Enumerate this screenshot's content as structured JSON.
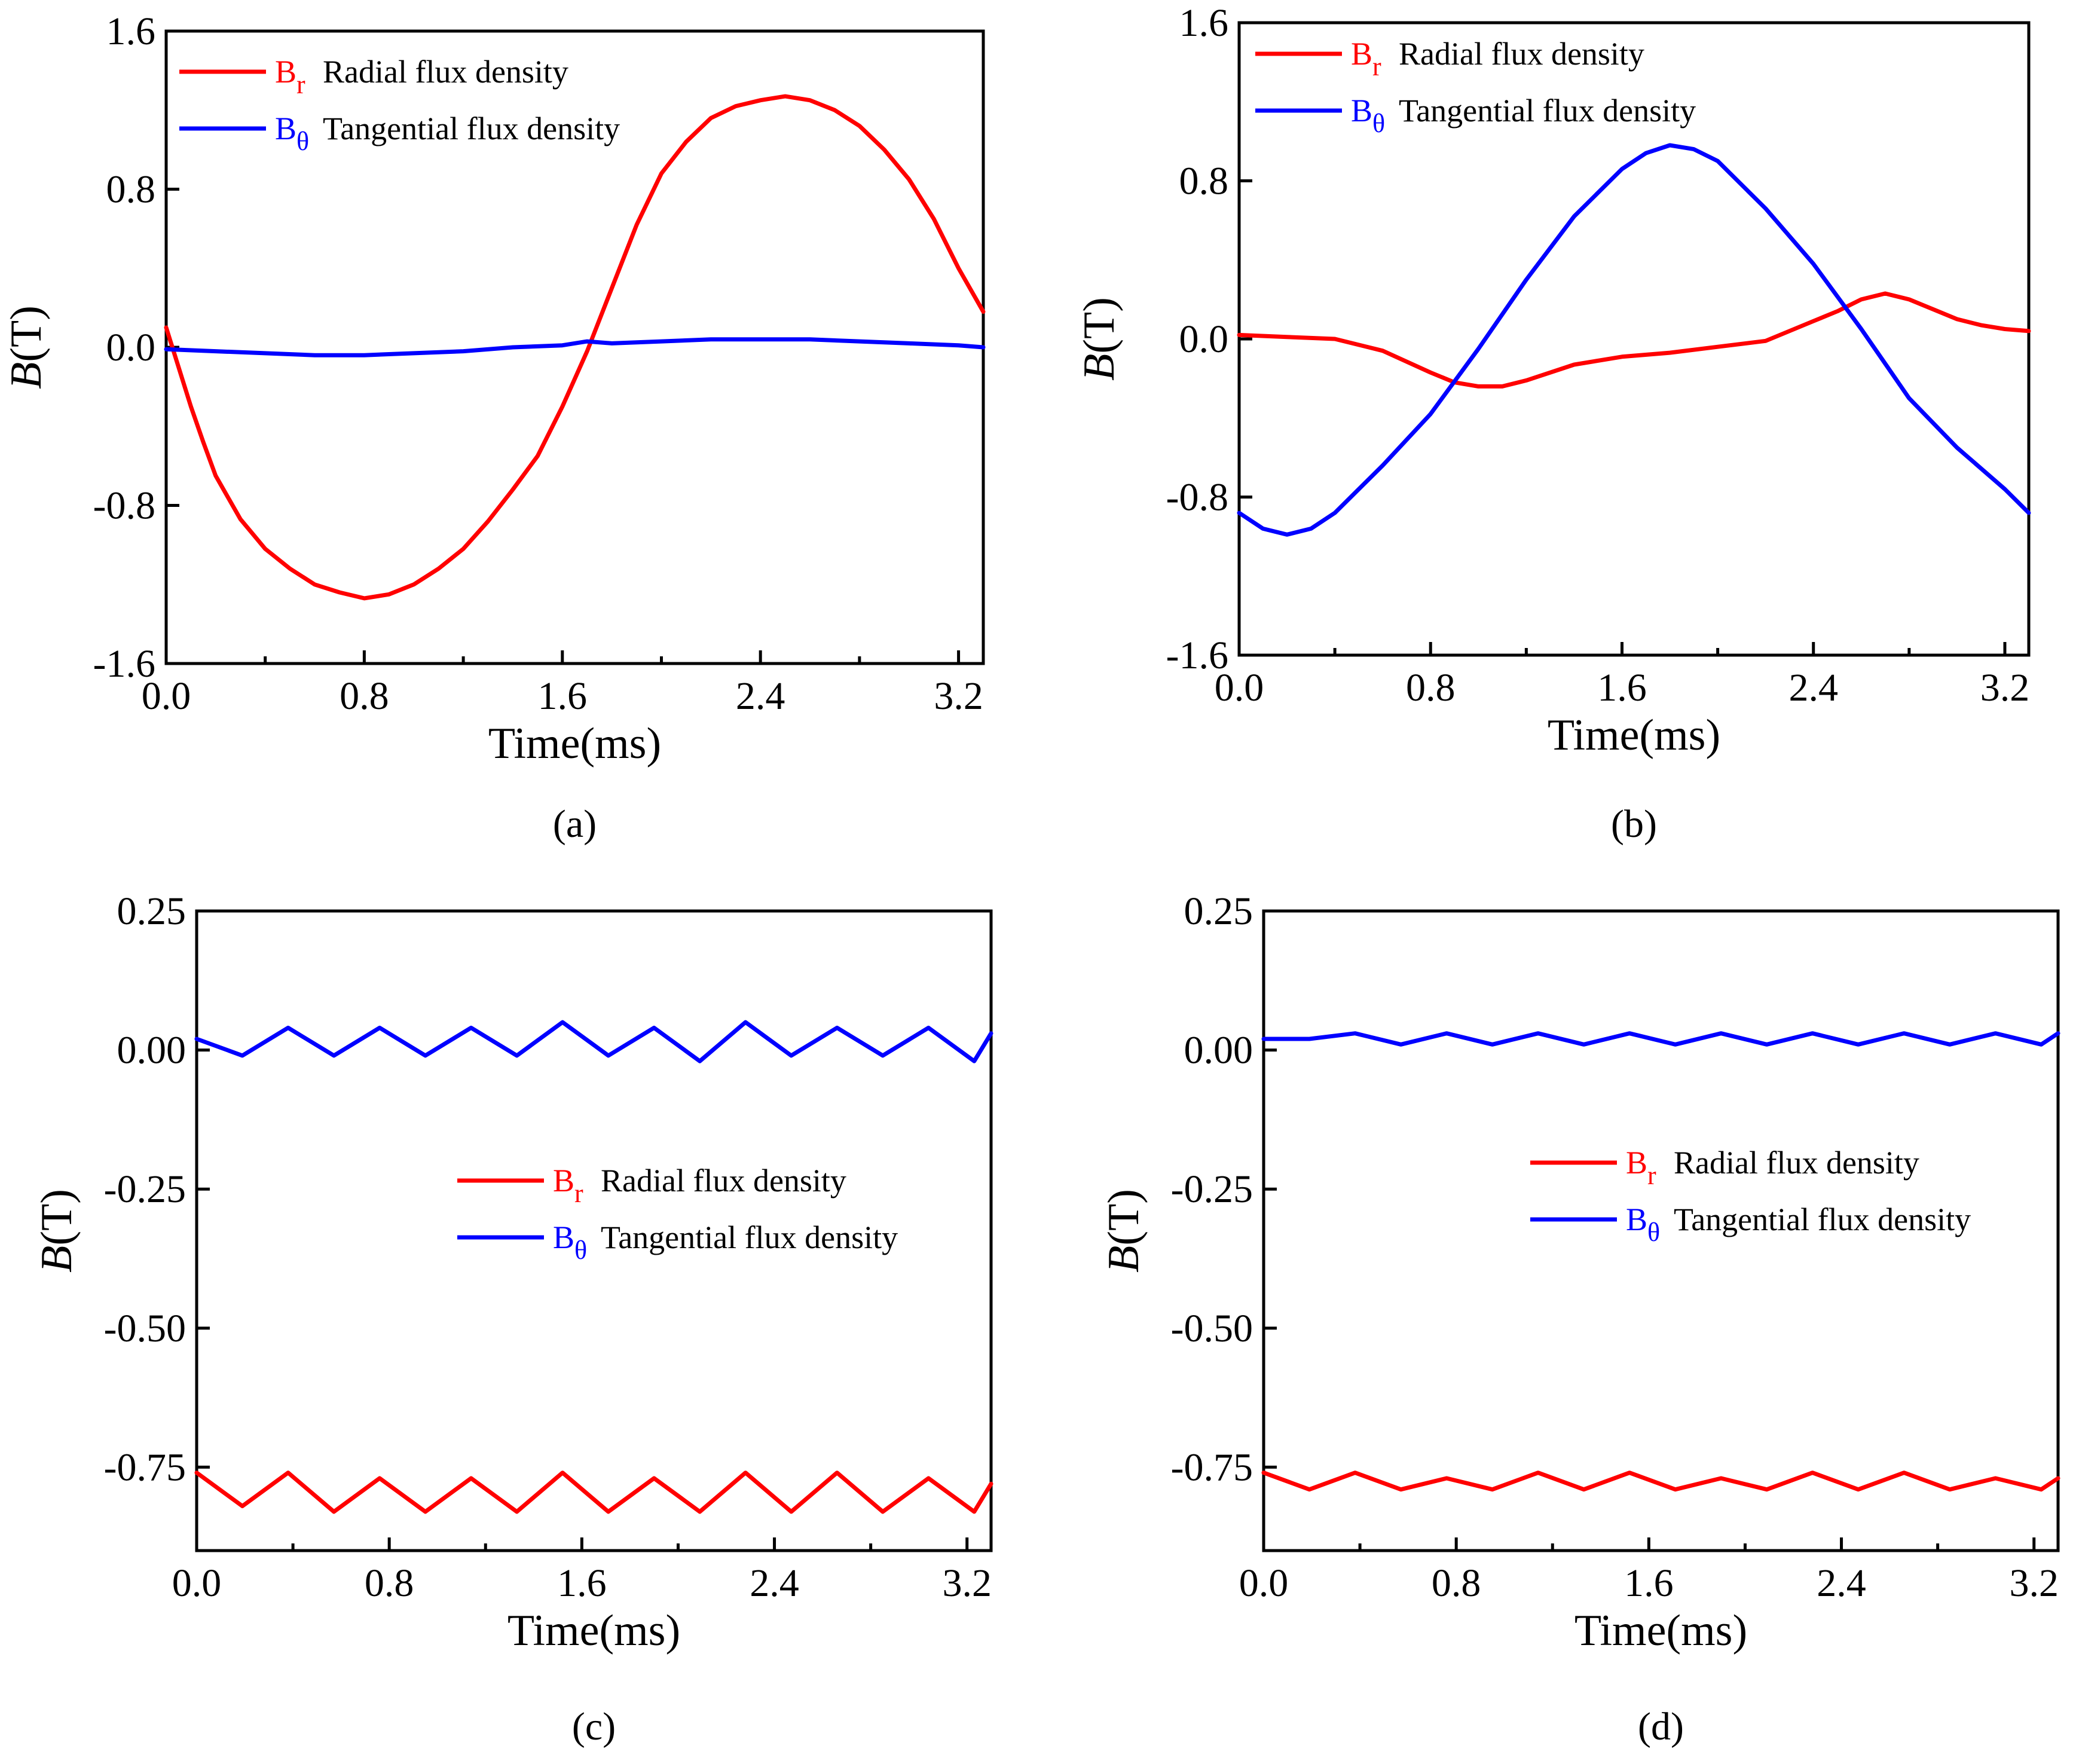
{
  "colors": {
    "radial": "#ff0000",
    "tangential": "#0000ff",
    "axis": "#000000"
  },
  "chart_data": [
    {
      "panel_label": "(a)",
      "type": "line",
      "title": "",
      "xlabel": "Time(ms)",
      "ylabel_italic": "B",
      "ylabel_unit": "(T)",
      "xlim": [
        0.0,
        3.3
      ],
      "ylim": [
        -1.6,
        1.6
      ],
      "xticks": [
        "0.0",
        "0.8",
        "1.6",
        "2.4",
        "3.2"
      ],
      "yticks": [
        "-1.6",
        "-0.8",
        "0.0",
        "0.8",
        "1.6"
      ],
      "legend_position": "top-left",
      "series": [
        {
          "name": "Radial flux density",
          "symbol": "B",
          "subscript": "r",
          "color": "#ff0000",
          "x": [
            0.0,
            0.05,
            0.1,
            0.15,
            0.2,
            0.3,
            0.4,
            0.5,
            0.6,
            0.7,
            0.8,
            0.9,
            1.0,
            1.1,
            1.2,
            1.3,
            1.4,
            1.5,
            1.6,
            1.7,
            1.8,
            1.9,
            2.0,
            2.1,
            2.2,
            2.3,
            2.4,
            2.5,
            2.6,
            2.7,
            2.8,
            2.9,
            3.0,
            3.1,
            3.2,
            3.3
          ],
          "y": [
            0.1,
            -0.1,
            -0.3,
            -0.48,
            -0.65,
            -0.87,
            -1.02,
            -1.12,
            -1.2,
            -1.24,
            -1.27,
            -1.25,
            -1.2,
            -1.12,
            -1.02,
            -0.88,
            -0.72,
            -0.55,
            -0.3,
            -0.02,
            0.3,
            0.62,
            0.88,
            1.04,
            1.16,
            1.22,
            1.25,
            1.27,
            1.25,
            1.2,
            1.12,
            1.0,
            0.85,
            0.65,
            0.4,
            0.18
          ]
        },
        {
          "name": "Tangential flux density",
          "symbol": "B",
          "subscript": "θ",
          "color": "#0000ff",
          "x": [
            0.0,
            0.2,
            0.4,
            0.6,
            0.8,
            1.0,
            1.2,
            1.4,
            1.6,
            1.7,
            1.8,
            2.0,
            2.2,
            2.4,
            2.6,
            2.8,
            3.0,
            3.2,
            3.3
          ],
          "y": [
            -0.01,
            -0.02,
            -0.03,
            -0.04,
            -0.04,
            -0.03,
            -0.02,
            0.0,
            0.01,
            0.03,
            0.02,
            0.03,
            0.04,
            0.04,
            0.04,
            0.03,
            0.02,
            0.01,
            0.0
          ]
        }
      ]
    },
    {
      "panel_label": "(b)",
      "type": "line",
      "title": "",
      "xlabel": "Time(ms)",
      "ylabel_italic": "B",
      "ylabel_unit": "(T)",
      "xlim": [
        0.0,
        3.3
      ],
      "ylim": [
        -1.6,
        1.6
      ],
      "xticks": [
        "0.0",
        "0.8",
        "1.6",
        "2.4",
        "3.2"
      ],
      "yticks": [
        "-1.6",
        "-0.8",
        "0.0",
        "0.8",
        "1.6"
      ],
      "legend_position": "top-left",
      "series": [
        {
          "name": "Radial flux density",
          "symbol": "B",
          "subscript": "r",
          "color": "#ff0000",
          "x": [
            0.0,
            0.2,
            0.4,
            0.6,
            0.8,
            0.9,
            1.0,
            1.1,
            1.2,
            1.4,
            1.6,
            1.8,
            2.0,
            2.2,
            2.4,
            2.5,
            2.6,
            2.7,
            2.8,
            2.9,
            3.0,
            3.1,
            3.2,
            3.3
          ],
          "y": [
            0.02,
            0.01,
            0.0,
            -0.06,
            -0.17,
            -0.22,
            -0.24,
            -0.24,
            -0.21,
            -0.13,
            -0.09,
            -0.07,
            -0.04,
            -0.01,
            0.09,
            0.14,
            0.2,
            0.23,
            0.2,
            0.15,
            0.1,
            0.07,
            0.05,
            0.04
          ]
        },
        {
          "name": "Tangential flux density",
          "symbol": "B",
          "subscript": "θ",
          "color": "#0000ff",
          "x": [
            0.0,
            0.1,
            0.2,
            0.3,
            0.4,
            0.6,
            0.8,
            1.0,
            1.2,
            1.4,
            1.6,
            1.7,
            1.8,
            1.9,
            2.0,
            2.2,
            2.4,
            2.6,
            2.8,
            3.0,
            3.2,
            3.3
          ],
          "y": [
            -0.88,
            -0.96,
            -0.99,
            -0.96,
            -0.88,
            -0.64,
            -0.38,
            -0.05,
            0.3,
            0.62,
            0.86,
            0.94,
            0.98,
            0.96,
            0.9,
            0.66,
            0.38,
            0.05,
            -0.3,
            -0.55,
            -0.76,
            -0.88
          ]
        }
      ]
    },
    {
      "panel_label": "(c)",
      "type": "line",
      "title": "",
      "xlabel": "Time(ms)",
      "ylabel_italic": "B",
      "ylabel_unit": "(T)",
      "xlim": [
        0.0,
        3.3
      ],
      "ylim": [
        -0.9,
        0.25
      ],
      "xticks": [
        "0.0",
        "0.8",
        "1.6",
        "2.4",
        "3.2"
      ],
      "yticks": [
        "0.25",
        "0.00",
        "-0.25",
        "-0.50",
        "-0.75"
      ],
      "legend_position": "middle-right",
      "series": [
        {
          "name": "Radial flux density",
          "symbol": "B",
          "subscript": "r",
          "color": "#ff0000",
          "x": [
            0.0,
            0.19,
            0.38,
            0.57,
            0.76,
            0.95,
            1.14,
            1.33,
            1.52,
            1.71,
            1.9,
            2.09,
            2.28,
            2.47,
            2.66,
            2.85,
            3.04,
            3.23,
            3.3
          ],
          "y": [
            -0.76,
            -0.82,
            -0.76,
            -0.83,
            -0.77,
            -0.83,
            -0.77,
            -0.83,
            -0.76,
            -0.83,
            -0.77,
            -0.83,
            -0.76,
            -0.83,
            -0.76,
            -0.83,
            -0.77,
            -0.83,
            -0.78
          ]
        },
        {
          "name": "Tangential flux density",
          "symbol": "B",
          "subscript": "θ",
          "color": "#0000ff",
          "x": [
            0.0,
            0.19,
            0.38,
            0.57,
            0.76,
            0.95,
            1.14,
            1.33,
            1.52,
            1.71,
            1.9,
            2.09,
            2.28,
            2.47,
            2.66,
            2.85,
            3.04,
            3.23,
            3.3
          ],
          "y": [
            0.02,
            -0.01,
            0.04,
            -0.01,
            0.04,
            -0.01,
            0.04,
            -0.01,
            0.05,
            -0.01,
            0.04,
            -0.02,
            0.05,
            -0.01,
            0.04,
            -0.01,
            0.04,
            -0.02,
            0.03
          ]
        }
      ]
    },
    {
      "panel_label": "(d)",
      "type": "line",
      "title": "",
      "xlabel": "Time(ms)",
      "ylabel_italic": "B",
      "ylabel_unit": "(T)",
      "xlim": [
        0.0,
        3.3
      ],
      "ylim": [
        -0.9,
        0.25
      ],
      "xticks": [
        "0.0",
        "0.8",
        "1.6",
        "2.4",
        "3.2"
      ],
      "yticks": [
        "0.25",
        "0.00",
        "-0.25",
        "-0.50",
        "-0.75"
      ],
      "legend_position": "middle-right",
      "series": [
        {
          "name": "Radial flux density",
          "symbol": "B",
          "subscript": "r",
          "color": "#ff0000",
          "x": [
            0.0,
            0.19,
            0.38,
            0.57,
            0.76,
            0.95,
            1.14,
            1.33,
            1.52,
            1.71,
            1.9,
            2.09,
            2.28,
            2.47,
            2.66,
            2.85,
            3.04,
            3.23,
            3.3
          ],
          "y": [
            -0.76,
            -0.79,
            -0.76,
            -0.79,
            -0.77,
            -0.79,
            -0.76,
            -0.79,
            -0.76,
            -0.79,
            -0.77,
            -0.79,
            -0.76,
            -0.79,
            -0.76,
            -0.79,
            -0.77,
            -0.79,
            -0.77
          ]
        },
        {
          "name": "Tangential flux density",
          "symbol": "B",
          "subscript": "θ",
          "color": "#0000ff",
          "x": [
            0.0,
            0.19,
            0.38,
            0.57,
            0.76,
            0.95,
            1.14,
            1.33,
            1.52,
            1.71,
            1.9,
            2.09,
            2.28,
            2.47,
            2.66,
            2.85,
            3.04,
            3.23,
            3.3
          ],
          "y": [
            0.02,
            0.02,
            0.03,
            0.01,
            0.03,
            0.01,
            0.03,
            0.01,
            0.03,
            0.01,
            0.03,
            0.01,
            0.03,
            0.01,
            0.03,
            0.01,
            0.03,
            0.01,
            0.03
          ]
        }
      ]
    }
  ]
}
